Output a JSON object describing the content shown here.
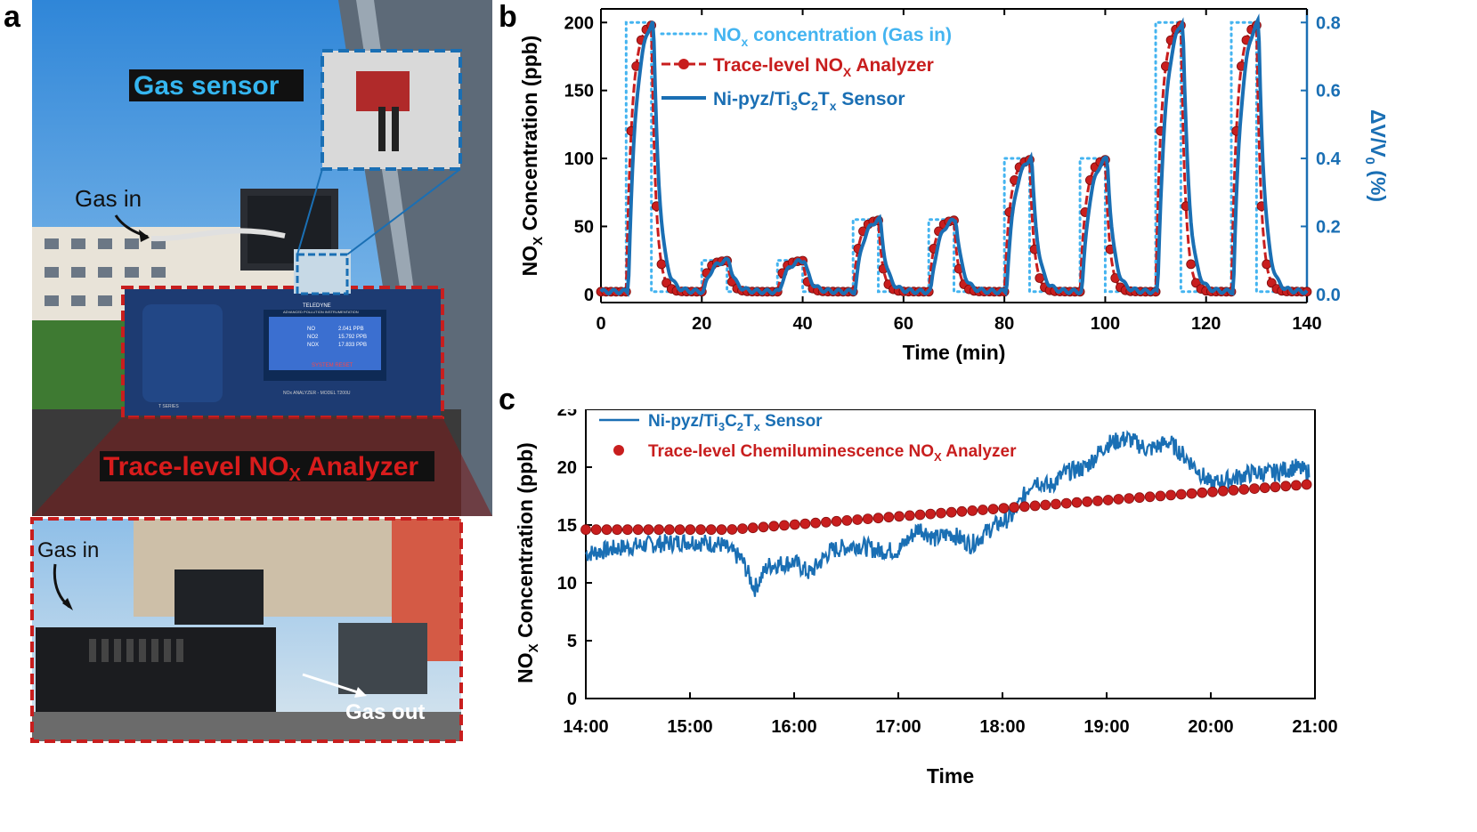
{
  "panels": {
    "a": "a",
    "b": "b",
    "c": "c"
  },
  "photo": {
    "gas_sensor_label": "Gas sensor",
    "gas_in_top": "Gas in",
    "analyzer_label_main": "Trace-level NO",
    "analyzer_label_sub": "X",
    "analyzer_label_tail": " Analyzer",
    "gas_in_bottom": "Gas in",
    "gas_out": "Gas out",
    "screen": {
      "brand": "TELEDYNE",
      "brand_sub": "ADVANCED POLLUTION INSTRUMENTATION",
      "rows": [
        {
          "name": "NO",
          "value": "2.041 PPB"
        },
        {
          "name": "NO2",
          "value": "15.792 PPB"
        },
        {
          "name": "NOX",
          "value": "17.833 PPB"
        }
      ],
      "status": "SYSTEM RESET",
      "model": "NOx ANALYZER - MODEL T200U",
      "series": "T SERIES"
    },
    "colors": {
      "blue_box": "#1a6fb4",
      "red_box": "#c81e1e",
      "sensor_label_bg": "#111111",
      "sensor_label_fg": "#35b6f0",
      "analyzer_label_fg": "#d81c1c"
    }
  },
  "chart_b": {
    "type": "line",
    "xlabel": "Time (min)",
    "ylabel_main": "NO",
    "ylabel_sub": "X",
    "ylabel_tail": " Concentration (ppb)",
    "y2label": "ΔV/V",
    "y2label_sub": "0",
    "y2label_tail": " (%)",
    "xlim": [
      0,
      140
    ],
    "ylim": [
      -6,
      210
    ],
    "y2lim": [
      -0.024,
      0.84
    ],
    "xticks": [
      "0",
      "20",
      "40",
      "60",
      "80",
      "100",
      "120",
      "140"
    ],
    "yticks": [
      "0",
      "50",
      "100",
      "150",
      "200"
    ],
    "y2ticks": [
      "0.0",
      "0.2",
      "0.4",
      "0.6",
      "0.8"
    ],
    "legend_position": "top-left",
    "legend": {
      "gas_in_main": "NO",
      "gas_in_sub": "x",
      "gas_in_tail": " concentration (Gas in)",
      "analyzer_main": "Trace-level NO",
      "analyzer_sub": "X",
      "analyzer_tail": " Analyzer",
      "sensor_main": "Ni-pyz/Ti",
      "sensor_sub1": "3",
      "sensor_mid": "C",
      "sensor_sub2": "2",
      "sensor_mid2": "T",
      "sensor_sub3": "x",
      "sensor_tail": " Sensor"
    },
    "colors": {
      "gas_in": "#44b4f0",
      "analyzer": "#c81e1e",
      "sensor": "#1a6fb4",
      "y2axis": "#1a6fb4"
    },
    "pulses": [
      {
        "start": 5,
        "end": 10,
        "level": 200
      },
      {
        "start": 20,
        "end": 25,
        "level": 25
      },
      {
        "start": 35,
        "end": 40,
        "level": 25
      },
      {
        "start": 50,
        "end": 55,
        "level": 55
      },
      {
        "start": 65,
        "end": 70,
        "level": 55
      },
      {
        "start": 80,
        "end": 85,
        "level": 100
      },
      {
        "start": 95,
        "end": 100,
        "level": 100
      },
      {
        "start": 110,
        "end": 115,
        "level": 200
      },
      {
        "start": 125,
        "end": 130,
        "level": 200
      }
    ],
    "baseline": 2
  },
  "chart_c": {
    "type": "line",
    "xlabel": "Time",
    "ylabel_main": "NO",
    "ylabel_sub": "X",
    "ylabel_tail": " Concentration (ppb)",
    "xlim": [
      14.0,
      21.0
    ],
    "ylim": [
      0,
      25
    ],
    "xticks": [
      "14:00",
      "15:00",
      "16:00",
      "17:00",
      "18:00",
      "19:00",
      "20:00",
      "21:00"
    ],
    "yticks": [
      "0",
      "5",
      "10",
      "15",
      "20",
      "25"
    ],
    "legend_position": "top-left",
    "legend": {
      "sensor_main": "Ni-pyz/Ti",
      "sensor_sub1": "3",
      "sensor_mid": "C",
      "sensor_sub2": "2",
      "sensor_mid2": "T",
      "sensor_sub3": "x",
      "sensor_tail": " Sensor",
      "analyzer_main": "Trace-level Chemiluminescence NO",
      "analyzer_sub": "X",
      "analyzer_tail": " Analyzer"
    },
    "colors": {
      "sensor": "#1a6fb4",
      "analyzer": "#c81e1e"
    },
    "sensor_anchors": [
      [
        14.0,
        12.5
      ],
      [
        14.3,
        13.0
      ],
      [
        14.6,
        13.3
      ],
      [
        15.0,
        13.6
      ],
      [
        15.3,
        13.3
      ],
      [
        15.5,
        12.0
      ],
      [
        15.62,
        9.5
      ],
      [
        15.75,
        11.5
      ],
      [
        16.0,
        11.8
      ],
      [
        16.15,
        10.8
      ],
      [
        16.35,
        12.8
      ],
      [
        16.6,
        13.3
      ],
      [
        16.8,
        12.8
      ],
      [
        17.0,
        12.8
      ],
      [
        17.2,
        14.8
      ],
      [
        17.35,
        13.8
      ],
      [
        17.5,
        14.3
      ],
      [
        17.7,
        13.3
      ],
      [
        17.9,
        14.8
      ],
      [
        18.1,
        15.8
      ],
      [
        18.3,
        19.0
      ],
      [
        18.45,
        18.3
      ],
      [
        18.6,
        19.5
      ],
      [
        18.8,
        20.0
      ],
      [
        19.0,
        22.0
      ],
      [
        19.2,
        22.5
      ],
      [
        19.4,
        21.5
      ],
      [
        19.6,
        22.2
      ],
      [
        19.8,
        20.5
      ],
      [
        20.0,
        18.5
      ],
      [
        20.2,
        19.0
      ],
      [
        20.4,
        19.5
      ],
      [
        20.6,
        19.5
      ],
      [
        20.8,
        20.0
      ],
      [
        20.95,
        19.5
      ]
    ],
    "analyzer_start": [
      14.0,
      14.6
    ],
    "analyzer_end": [
      20.92,
      18.5
    ],
    "analyzer_count": 70
  }
}
